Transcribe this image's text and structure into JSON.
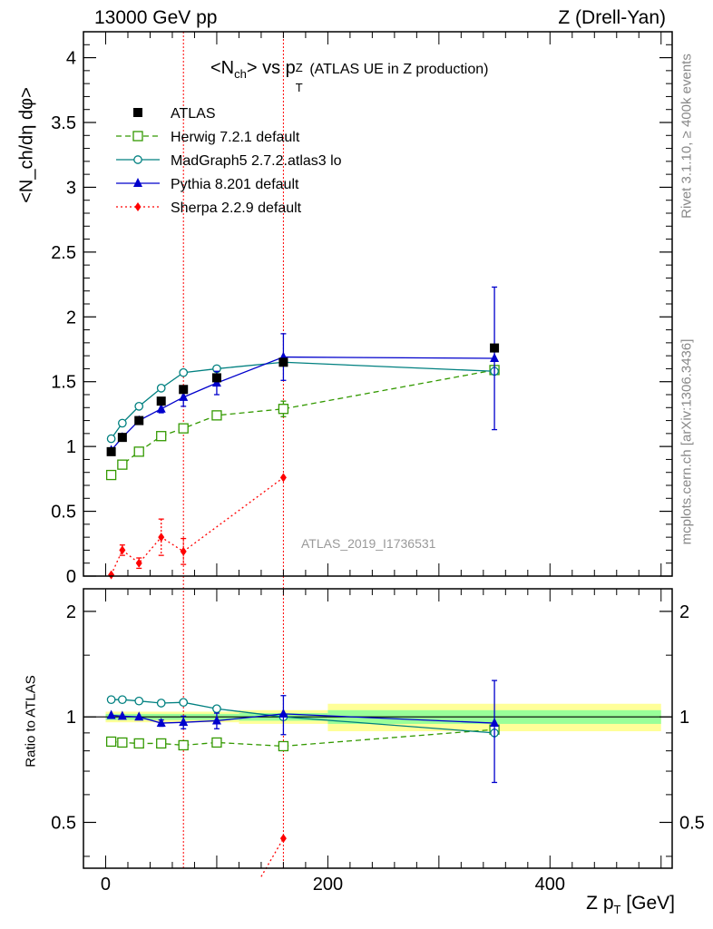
{
  "header": {
    "left": "13000 GeV pp",
    "right": "Z (Drell-Yan)"
  },
  "side": {
    "rivet": "Rivet 3.1.10, ≥ 400k events",
    "mcplots": "mcplots.cern.ch [arXiv:1306.3436]"
  },
  "chart_data": [
    {
      "type": "line",
      "title": "<N_ch> vs p_T^Z (ATLAS UE in Z production)",
      "title_main": "<N",
      "title_sub1": "ch",
      "title_mid": "> vs p",
      "title_sup": "Z",
      "title_sub2": "T",
      "title_tail": "(ATLAS UE in Z production)",
      "ylabel": "<N_ch/dη dφ>",
      "xlim": [
        -20,
        510
      ],
      "ylim": [
        0,
        4.2
      ],
      "yticks": [
        0,
        0.5,
        1,
        1.5,
        2,
        2.5,
        3,
        3.5,
        4
      ],
      "ytick_labels": [
        "0",
        "0.5",
        "1",
        "1.5",
        "2",
        "2.5",
        "3",
        "3.5",
        "4"
      ],
      "watermark": "ATLAS_2019_I1736531",
      "vlines": [
        70,
        160
      ],
      "legend_position": "top-left",
      "series": [
        {
          "name": "ATLAS",
          "color": "#000000",
          "marker": "square-filled",
          "line": "none",
          "x": [
            5,
            15,
            30,
            50,
            70,
            100,
            160,
            350
          ],
          "y": [
            0.96,
            1.07,
            1.2,
            1.35,
            1.44,
            1.53,
            1.65,
            1.76
          ]
        },
        {
          "name": "Herwig 7.2.1 default",
          "color": "#339900",
          "marker": "square-open",
          "line": "dashed",
          "x": [
            5,
            15,
            30,
            50,
            70,
            100,
            160,
            350
          ],
          "y": [
            0.78,
            0.86,
            0.96,
            1.08,
            1.14,
            1.24,
            1.29,
            1.59
          ],
          "err": [
            0,
            0,
            0,
            0,
            0,
            0,
            0.06,
            0
          ]
        },
        {
          "name": "MadGraph5 2.7.2.atlas3 lo",
          "color": "#008080",
          "marker": "circle-open",
          "line": "solid",
          "x": [
            5,
            15,
            30,
            50,
            70,
            100,
            160,
            350
          ],
          "y": [
            1.06,
            1.18,
            1.31,
            1.45,
            1.57,
            1.6,
            1.65,
            1.58
          ]
        },
        {
          "name": "Pythia 8.201 default",
          "color": "#0000cc",
          "marker": "triangle-filled",
          "line": "solid",
          "x": [
            5,
            15,
            30,
            50,
            70,
            100,
            160,
            350
          ],
          "y": [
            0.97,
            1.07,
            1.2,
            1.29,
            1.38,
            1.49,
            1.69,
            1.68
          ],
          "err": [
            0,
            0,
            0,
            0.03,
            0.07,
            0.09,
            0.18,
            0.55
          ]
        },
        {
          "name": "Sherpa 2.2.9 default",
          "color": "#ff0000",
          "marker": "diamond-filled",
          "line": "dotted",
          "x": [
            5,
            15,
            30,
            50,
            70,
            160
          ],
          "y": [
            0.01,
            0.2,
            0.1,
            0.3,
            0.19,
            0.76
          ],
          "err": [
            0,
            0.04,
            0.04,
            0.14,
            0.1,
            0
          ]
        }
      ]
    },
    {
      "type": "line",
      "ylabel": "Ratio to ATLAS",
      "xlabel": "Z p_T [GeV]",
      "xlabel_main": "Z p",
      "xlabel_sub": "T",
      "xlabel_tail": "[GeV]",
      "xlim": [
        -20,
        510
      ],
      "ylim": [
        0.37,
        2.32
      ],
      "xticks": [
        0,
        200,
        400
      ],
      "xtick_labels": [
        "0",
        "200",
        "400"
      ],
      "yticks": [
        0.5,
        1,
        2
      ],
      "ytick_labels": [
        "0.5",
        "1",
        "2"
      ],
      "bands": [
        {
          "x": [
            0,
            120
          ],
          "yellow": [
            0.965,
            1.035
          ],
          "green": [
            0.98,
            1.02
          ]
        },
        {
          "x": [
            120,
            200
          ],
          "yellow": [
            0.955,
            1.045
          ],
          "green": [
            0.975,
            1.025
          ]
        },
        {
          "x": [
            200,
            500
          ],
          "yellow": [
            0.91,
            1.09
          ],
          "green": [
            0.955,
            1.045
          ]
        }
      ],
      "series": [
        {
          "name": "Herwig 7.2.1 default",
          "color": "#339900",
          "marker": "square-open",
          "line": "dashed",
          "x": [
            5,
            15,
            30,
            50,
            70,
            100,
            160,
            350
          ],
          "y": [
            0.85,
            0.845,
            0.84,
            0.84,
            0.83,
            0.845,
            0.825,
            0.92
          ]
        },
        {
          "name": "MadGraph5 2.7.2.atlas3 lo",
          "color": "#008080",
          "marker": "circle-open",
          "line": "solid",
          "x": [
            5,
            15,
            30,
            50,
            70,
            100,
            160,
            350
          ],
          "y": [
            1.12,
            1.12,
            1.11,
            1.095,
            1.1,
            1.055,
            1.0,
            0.9
          ]
        },
        {
          "name": "Pythia 8.201 default",
          "color": "#0000cc",
          "marker": "triangle-filled",
          "line": "solid",
          "x": [
            5,
            15,
            30,
            50,
            70,
            100,
            160,
            350
          ],
          "y": [
            1.01,
            1.005,
            1.0,
            0.96,
            0.965,
            0.975,
            1.02,
            0.96
          ],
          "err": [
            0,
            0,
            0,
            0.02,
            0.04,
            0.05,
            0.13,
            0.31
          ]
        },
        {
          "name": "Sherpa 2.2.9 default",
          "color": "#ff0000",
          "marker": "diamond-filled",
          "line": "dotted",
          "x": [
            140,
            160
          ],
          "y": [
            0.35,
            0.45
          ]
        }
      ]
    }
  ]
}
